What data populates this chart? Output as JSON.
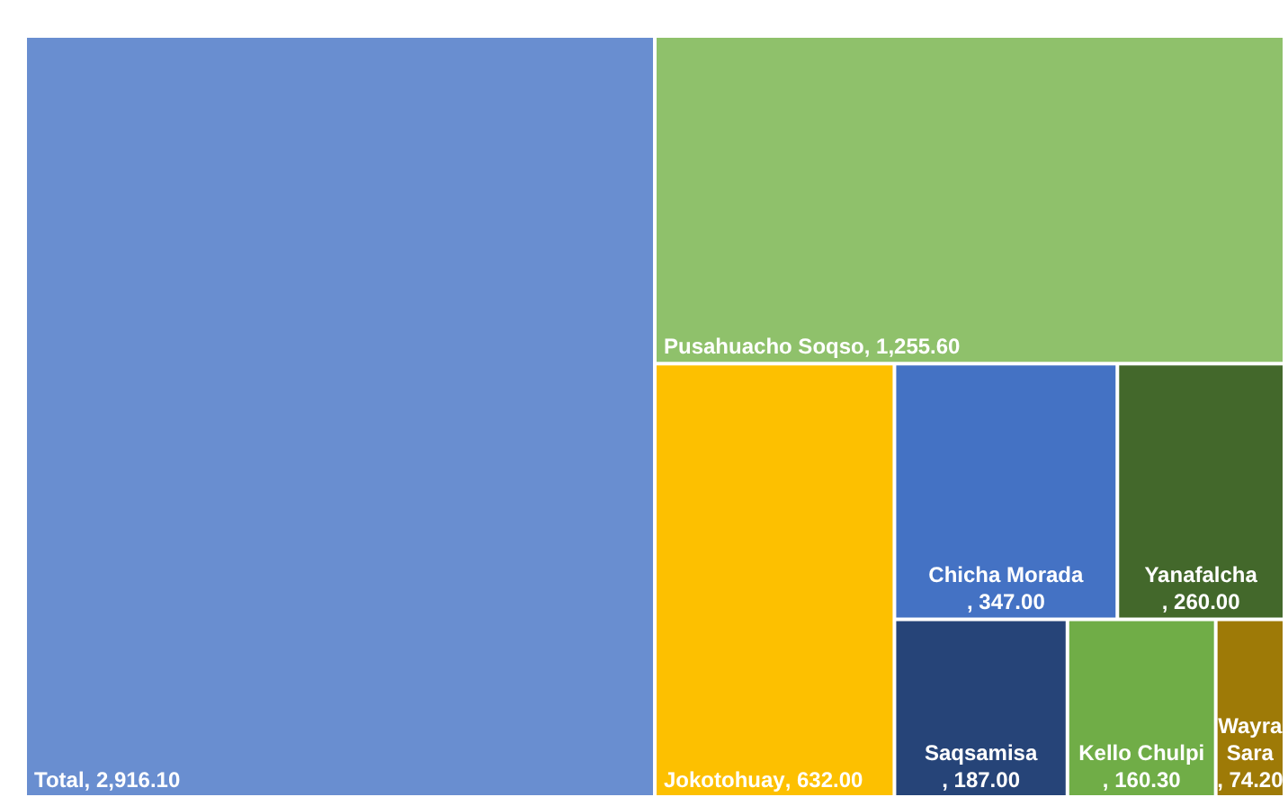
{
  "chart_data": {
    "type": "other",
    "categories": [
      "Total",
      "Pusahuacho Soqso",
      "Jokotohuay",
      "Chicha Morada",
      "Yanafalcha",
      "Saqsamisa",
      "Kello Chulpi",
      "Wayra Sara"
    ],
    "values": [
      2916.1,
      1255.6,
      632,
      347,
      260,
      187,
      160.3,
      74.2
    ],
    "value_labels": [
      ", 2,916.10",
      ", 1,255.60",
      ", 632.00",
      ", 347.00",
      ", 260.00",
      ", 187.00",
      ", 160.30",
      ", 74.20"
    ],
    "colors": [
      "#698ed0",
      "#8fc16b",
      "#fdc000",
      "#4472c4",
      "#43682b",
      "#264478",
      "#70ad47",
      "#9e7a07"
    ]
  }
}
